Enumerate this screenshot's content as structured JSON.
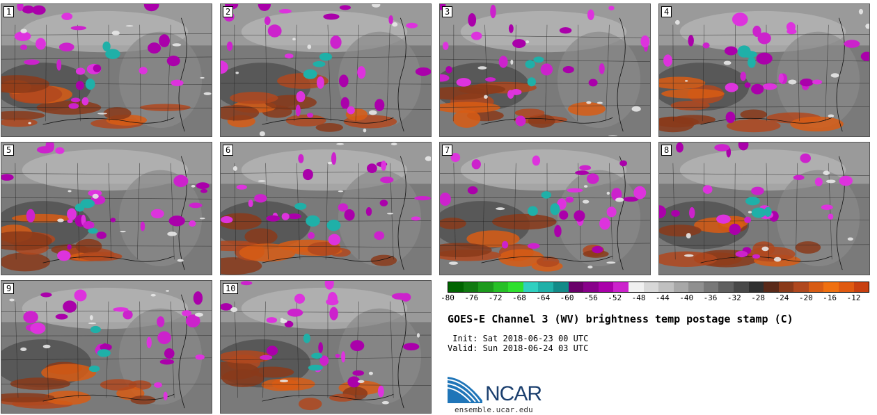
{
  "panels": [
    {
      "label": "1"
    },
    {
      "label": "2"
    },
    {
      "label": "3"
    },
    {
      "label": "4"
    },
    {
      "label": "5"
    },
    {
      "label": "6"
    },
    {
      "label": "7"
    },
    {
      "label": "8"
    },
    {
      "label": "9"
    },
    {
      "label": "10"
    }
  ],
  "colorbar": {
    "ticks": [
      "-80",
      "-76",
      "-72",
      "-68",
      "-64",
      "-60",
      "-56",
      "-52",
      "-48",
      "-44",
      "-40",
      "-36",
      "-32",
      "-28",
      "-24",
      "-20",
      "-16",
      "-12"
    ],
    "colors": [
      "#006400",
      "#117a11",
      "#1c9a1c",
      "#26c026",
      "#2ee02e",
      "#2fd0c0",
      "#1fb0a8",
      "#138a88",
      "#6a006a",
      "#88008a",
      "#aa00aa",
      "#cc22cc",
      "#f0f0f0",
      "#d8d8d8",
      "#c0c0c0",
      "#a8a8a8",
      "#909090",
      "#787878",
      "#606060",
      "#484848",
      "#303030",
      "#5a2a1a",
      "#8a3a1a",
      "#b0481e",
      "#d85c14",
      "#f07010",
      "#e05a10",
      "#c84010"
    ]
  },
  "title": "GOES-E Channel 3 (WV) brightness temp postage stamp (C)",
  "init": " Init: Sat 2018-06-23 00 UTC",
  "valid": "Valid: Sun 2018-06-24 03 UTC",
  "logo": {
    "name": "NCAR",
    "url": "ensemble.ucar.edu"
  }
}
